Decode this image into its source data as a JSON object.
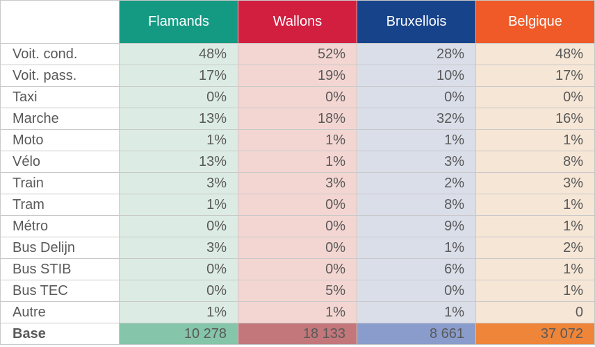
{
  "chart_data": {
    "type": "table",
    "columns": [
      "Flamands",
      "Wallons",
      "Bruxellois",
      "Belgique"
    ],
    "rows": [
      {
        "label": "Voit. cond.",
        "values": [
          "48%",
          "52%",
          "28%",
          "48%"
        ]
      },
      {
        "label": "Voit. pass.",
        "values": [
          "17%",
          "19%",
          "10%",
          "17%"
        ]
      },
      {
        "label": "Taxi",
        "values": [
          "0%",
          "0%",
          "0%",
          "0%"
        ]
      },
      {
        "label": "Marche",
        "values": [
          "13%",
          "18%",
          "32%",
          "16%"
        ]
      },
      {
        "label": "Moto",
        "values": [
          "1%",
          "1%",
          "1%",
          "1%"
        ]
      },
      {
        "label": "Vélo",
        "values": [
          "13%",
          "1%",
          "3%",
          "8%"
        ]
      },
      {
        "label": "Train",
        "values": [
          "3%",
          "3%",
          "2%",
          "3%"
        ]
      },
      {
        "label": "Tram",
        "values": [
          "1%",
          "0%",
          "8%",
          "1%"
        ]
      },
      {
        "label": "Métro",
        "values": [
          "0%",
          "0%",
          "9%",
          "1%"
        ]
      },
      {
        "label": "Bus Delijn",
        "values": [
          "3%",
          "0%",
          "1%",
          "2%"
        ]
      },
      {
        "label": "Bus STIB",
        "values": [
          "0%",
          "0%",
          "6%",
          "1%"
        ]
      },
      {
        "label": "Bus TEC",
        "values": [
          "0%",
          "5%",
          "0%",
          "1%"
        ]
      },
      {
        "label": "Autre",
        "values": [
          "1%",
          "1%",
          "1%",
          "0"
        ]
      }
    ],
    "base": {
      "label": "Base",
      "values": [
        "10 278",
        "18 133",
        "8 661",
        "37 072"
      ]
    }
  },
  "colors": {
    "header": [
      "#149a82",
      "#d21f40",
      "#17438a",
      "#ef5a28"
    ],
    "cell": [
      "#dcece5",
      "#f3d6d2",
      "#d9dee9",
      "#f5e6d6"
    ],
    "base": [
      "#85c5a9",
      "#c3777a",
      "#8a9ccb",
      "#ee8539"
    ]
  }
}
